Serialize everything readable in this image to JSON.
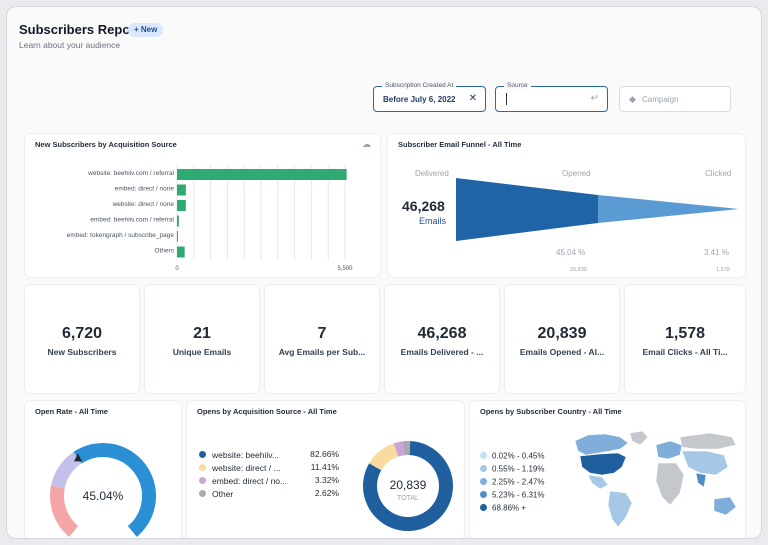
{
  "header": {
    "title": "Subscribers Report",
    "badge": "+ New",
    "subtitle": "Learn about your audience"
  },
  "filters": {
    "created_at": {
      "legend": "Subscription Created At",
      "value": "Before July 6, 2022"
    },
    "source": {
      "legend": "Source",
      "value": ""
    },
    "campaign": {
      "placeholder": "Campaign"
    }
  },
  "acquisition_chart": {
    "title": "New Subscribers by Acquisition Source",
    "chart_data": {
      "type": "bar",
      "orientation": "horizontal",
      "categories": [
        "website: beehiiv.com / referral",
        "embed: direct / none",
        "website: direct / none",
        "embed: beehiiv.com / referral",
        "embed: tokengraph / subscribe_page",
        "Others"
      ],
      "values": [
        5555,
        290,
        290,
        60,
        20,
        250
      ],
      "xticks": [
        "0",
        "5,500"
      ],
      "xlim": [
        0,
        5500
      ],
      "color": "#2faa72"
    }
  },
  "funnel": {
    "title": "Subscriber Email Funnel - All Time",
    "stages": [
      "Delivered",
      "Opened",
      "Clicked"
    ],
    "count": "46,268",
    "count_label": "Emails",
    "opened_pct": "45.04 %",
    "clicked_pct": "3.41 %",
    "opened_count": "20,839",
    "clicked_count": "1,578",
    "chart_data": {
      "type": "area",
      "categories": [
        "Delivered",
        "Opened",
        "Clicked"
      ],
      "values": [
        46268,
        20839,
        1578
      ]
    }
  },
  "kpis": [
    {
      "value": "6,720",
      "label": "New Subscribers"
    },
    {
      "value": "21",
      "label": "Unique Emails"
    },
    {
      "value": "7",
      "label": "Avg Emails per Sub..."
    },
    {
      "value": "46,268",
      "label": "Emails Delivered - ..."
    },
    {
      "value": "20,839",
      "label": "Emails Opened - Al..."
    },
    {
      "value": "1,578",
      "label": "Email Clicks - All Ti..."
    }
  ],
  "open_rate": {
    "title": "Open Rate - All Time",
    "value": "45.04%",
    "chart_data": {
      "type": "pie",
      "values": [
        45.04
      ],
      "range": [
        0,
        100
      ]
    }
  },
  "opens_by_source": {
    "title": "Opens by Acquisition Source - All Time",
    "total": "20,839",
    "total_label": "TOTAL",
    "items": [
      {
        "label": "website: beehiiv...",
        "value": "82.66%",
        "color": "#1f5f9e"
      },
      {
        "label": "website: direct / ...",
        "value": "11.41%",
        "color": "#f9dba0"
      },
      {
        "label": "embed: direct / no...",
        "value": "3.32%",
        "color": "#c9a5d8"
      },
      {
        "label": "Other",
        "value": "2.62%",
        "color": "#a9a9b3"
      }
    ],
    "chart_data": {
      "type": "pie",
      "categories": [
        "website: beehiiv...",
        "website: direct / ...",
        "embed: direct / no...",
        "Other"
      ],
      "values": [
        82.66,
        11.41,
        3.32,
        2.62
      ]
    }
  },
  "opens_by_country": {
    "title": "Opens by Subscriber Country - All Time",
    "legend": [
      {
        "label": "0.02% - 0.45%",
        "color": "#c9def0"
      },
      {
        "label": "0.55% - 1.19%",
        "color": "#a5c8e6"
      },
      {
        "label": "2.25% - 2.47%",
        "color": "#7eaed9"
      },
      {
        "label": "5.23% - 6.31%",
        "color": "#4f8dc6"
      },
      {
        "label": "68.86% +",
        "color": "#1f5f9e"
      }
    ]
  }
}
